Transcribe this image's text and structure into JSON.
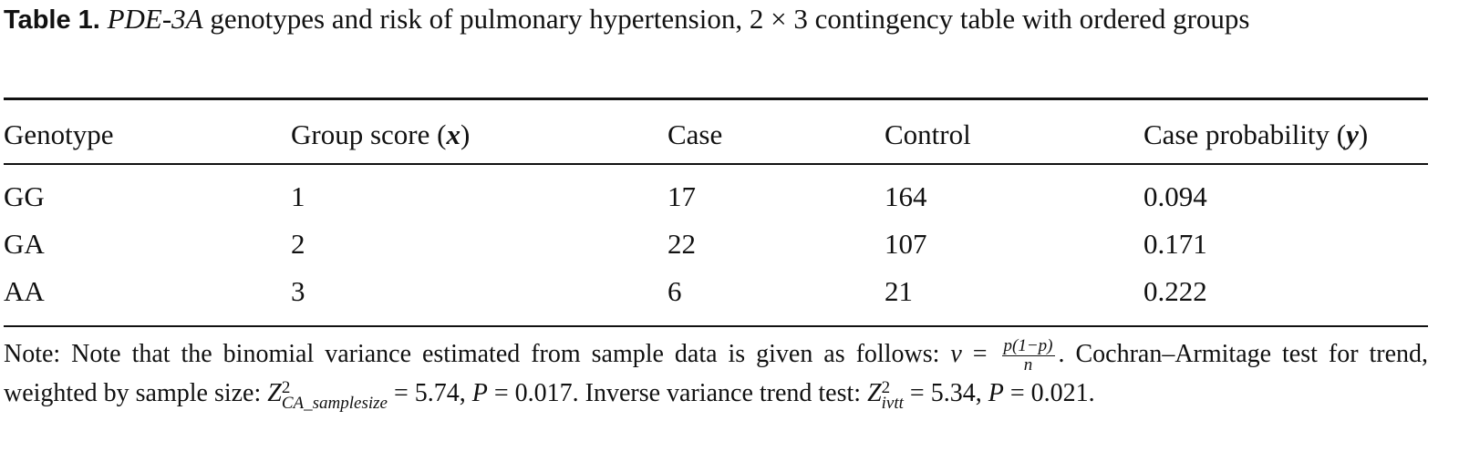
{
  "caption": {
    "label": "Table 1.",
    "gene": "PDE-3A",
    "text": " genotypes and risk of pulmonary hypertension, 2 × 3 contingency table with ordered groups"
  },
  "table": {
    "headers": [
      "Genotype",
      "Group score (",
      "x",
      ")",
      "Case",
      "Control",
      "Case probability (",
      "y",
      ")"
    ],
    "rows": [
      [
        "GG",
        "1",
        "17",
        "164",
        "0.094"
      ],
      [
        "GA",
        "2",
        "22",
        "107",
        "0.171"
      ],
      [
        "AA",
        "3",
        "6",
        "21",
        "0.222"
      ]
    ]
  },
  "note": {
    "part1": "Note: Note that the binomial variance estimated from sample data is given as follows: ",
    "v": "v",
    "eq": " = ",
    "frac_num": "p(1−p)",
    "frac_den": "n",
    "part2": ". Cochran–Armitage test for trend, weighted by sample size: ",
    "z": "Z",
    "z1_sup": "2",
    "z1_sub": "CA_samplesize",
    "part3": " = 5.74, ",
    "p": "P",
    "part4": " = 0.017. Inverse variance trend test: ",
    "z2_sup": "2",
    "z2_sub": "ivtt",
    "part5": " = 5.34, ",
    "part6": " = 0.021."
  }
}
